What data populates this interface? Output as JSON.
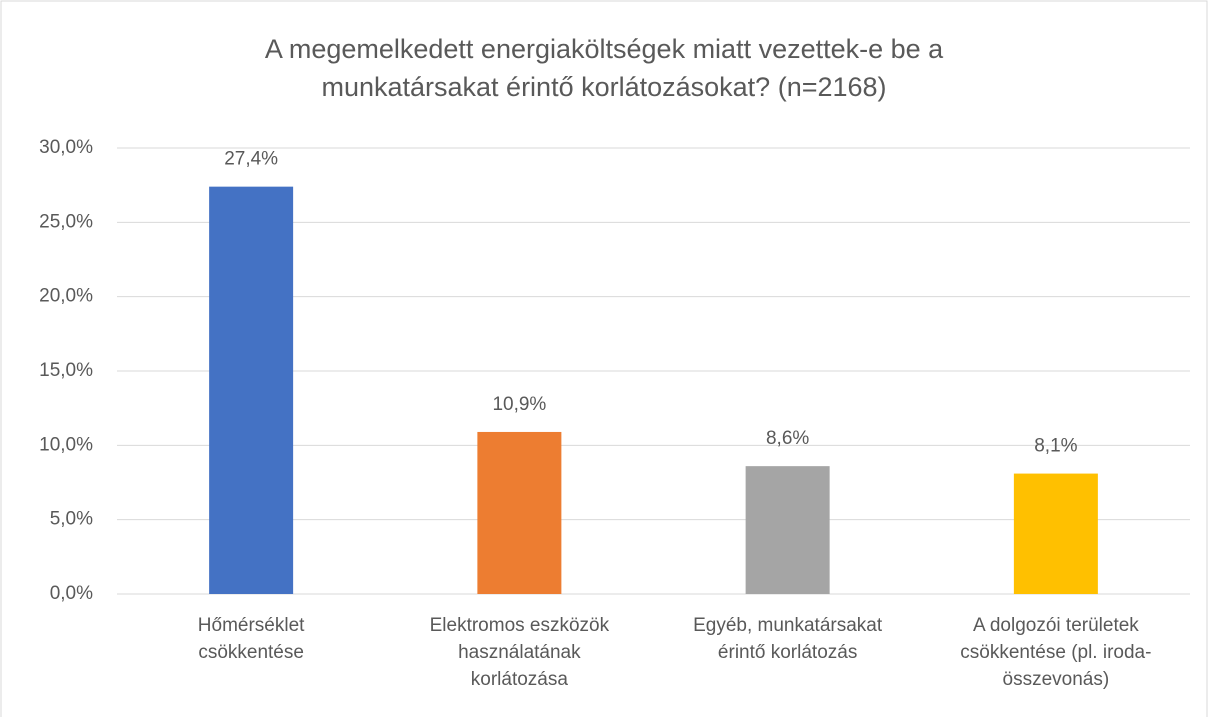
{
  "chart_data": {
    "type": "bar",
    "title": "A megemelkedett energiaköltségek miatt vezettek-e be a\nmunkatársakat érintő korlátozásokat? (n=2168)",
    "categories": [
      "Hőmérséklet\ncsökkentése",
      "Elektromos eszközök\nhasználatának\nkorlátozása",
      "Egyéb, munkatársakat\nérintő korlátozás",
      "A dolgozói területek\ncsökkentése (pl. iroda-\nösszevonás)"
    ],
    "values": [
      27.4,
      10.9,
      8.6,
      8.1
    ],
    "value_labels": [
      "27,4%",
      "10,9%",
      "8,6%",
      "8,1%"
    ],
    "colors": [
      "#4472c4",
      "#ed7d31",
      "#a5a5a5",
      "#ffc000"
    ],
    "ylim": [
      0,
      30
    ],
    "yticks": [
      {
        "value": 0,
        "label": "0,0%"
      },
      {
        "value": 5,
        "label": "5,0%"
      },
      {
        "value": 10,
        "label": "10,0%"
      },
      {
        "value": 15,
        "label": "15,0%"
      },
      {
        "value": 20,
        "label": "20,0%"
      },
      {
        "value": 25,
        "label": "25,0%"
      },
      {
        "value": 30,
        "label": "30,0%"
      }
    ],
    "grid": true
  }
}
